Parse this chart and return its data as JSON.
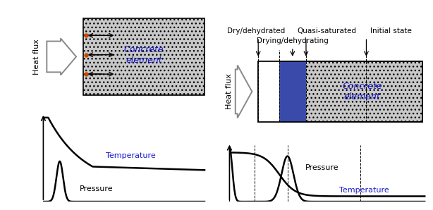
{
  "bg_color": "#ffffff",
  "concrete_gray": "#c8c8c8",
  "blue_fill": "#3a4aaa",
  "left_panel": {
    "label_concrete": "Concrete\nelement",
    "label_heat": "Heat flux",
    "temp_label": "Temperature",
    "pressure_label": "Pressure"
  },
  "right_panel": {
    "label_concrete": "Concrete\nelement",
    "label_heat": "Heat flux",
    "label_drying": "Drying/dehydrating",
    "label_dry": "Dry/dehydrated",
    "label_quasi": "Quasi-saturated",
    "label_initial": "Initial state",
    "temp_label": "Temperature",
    "pressure_label": "Pressure"
  }
}
